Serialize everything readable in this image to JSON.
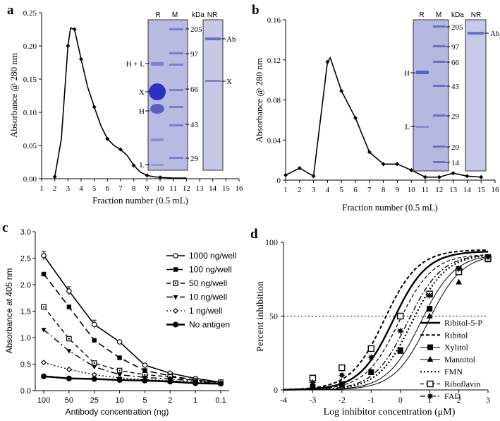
{
  "chart_data": [
    {
      "id": "a",
      "panel_label": "a",
      "type": "line",
      "ylabel": "Absorbance @ 280 nm",
      "xlabel": "Fraction number  (0.5 mL)",
      "xlim": [
        1,
        16
      ],
      "ylim": [
        0,
        0.25
      ],
      "xticks": [
        "1",
        "2",
        "3",
        "4",
        "5",
        "6",
        "7",
        "8",
        "9",
        "10",
        "11",
        "12",
        "13",
        "14",
        "15",
        "16"
      ],
      "yticks": [
        "0.00",
        "0.05",
        "0.10",
        "0.15",
        "0.20",
        "0.25"
      ],
      "series": [
        {
          "name": "A280",
          "x": [
            2,
            2.5,
            3,
            3.2,
            3.5,
            4,
            4.5,
            5,
            5.5,
            6,
            6.5,
            7,
            7.5,
            8,
            8.5,
            9,
            9.5,
            10,
            11,
            12
          ],
          "y": [
            0.003,
            0.06,
            0.2,
            0.227,
            0.225,
            0.18,
            0.138,
            0.108,
            0.08,
            0.06,
            0.05,
            0.044,
            0.035,
            0.02,
            0.01,
            0.005,
            0.003,
            0.002,
            0.001,
            0.001
          ]
        }
      ],
      "markers_x": [
        2,
        3,
        3.5,
        4,
        5,
        6,
        7,
        8,
        9,
        10
      ],
      "gels": [
        {
          "lanes": [
            "R",
            "M"
          ],
          "kda_label": "kDa",
          "marker_kda": [
            "205",
            "97",
            "66",
            "43",
            "29"
          ],
          "band_labels": [
            "H + L",
            "X",
            "H",
            "L"
          ]
        },
        {
          "lanes": [
            "NR"
          ],
          "band_labels": [
            "Ab",
            "X"
          ]
        }
      ]
    },
    {
      "id": "b",
      "panel_label": "b",
      "type": "line",
      "ylabel": "Absorbance @ 280 nm",
      "xlabel": "Fraction number  (0.5 mL)",
      "xlim": [
        1,
        16
      ],
      "ylim": [
        0,
        0.16
      ],
      "xticks": [
        "1",
        "2",
        "3",
        "4",
        "5",
        "6",
        "7",
        "8",
        "9",
        "10",
        "11",
        "12",
        "13",
        "14",
        "15",
        "16"
      ],
      "yticks": [
        "0",
        "0.04",
        "0.08",
        "0.12",
        "0.16"
      ],
      "series": [
        {
          "name": "A280",
          "x": [
            1,
            2,
            3,
            4,
            4.2,
            5,
            6,
            7,
            8,
            9,
            10,
            11,
            12,
            13,
            14,
            15
          ],
          "y": [
            0.005,
            0.012,
            0.004,
            0.118,
            0.122,
            0.089,
            0.062,
            0.028,
            0.016,
            0.016,
            0.01,
            0.003,
            0.003,
            0.007,
            0.004,
            0.003
          ]
        }
      ],
      "gels": [
        {
          "lanes": [
            "R",
            "M"
          ],
          "kda_label": "kDa",
          "marker_kda": [
            "205",
            "97",
            "66",
            "43",
            "29",
            "20",
            "14"
          ],
          "band_labels": [
            "H",
            "L"
          ]
        },
        {
          "lanes": [
            "NR"
          ],
          "band_labels": [
            "Ab"
          ]
        }
      ]
    },
    {
      "id": "c",
      "panel_label": "c",
      "type": "line",
      "ylabel": "Absorbance at 405 nm",
      "xlabel": "Antibody concentration (ng)",
      "ylim": [
        0,
        3.0
      ],
      "categories": [
        "100",
        "50",
        "25",
        "10",
        "5",
        "2",
        "1",
        "0.1"
      ],
      "yticks": [
        "0.0",
        "0.5",
        "1.0",
        "1.5",
        "2.0",
        "2.5",
        "3.0"
      ],
      "series": [
        {
          "name": "1000 ng/well",
          "values": [
            2.55,
            1.88,
            1.25,
            0.92,
            0.48,
            0.33,
            0.23,
            0.16
          ]
        },
        {
          "name": "100 ng/well",
          "values": [
            2.2,
            1.58,
            0.95,
            0.62,
            0.38,
            0.28,
            0.2,
            0.15
          ]
        },
        {
          "name": "50 ng/well",
          "values": [
            1.58,
            0.98,
            0.52,
            0.38,
            0.3,
            0.26,
            0.19,
            0.16
          ]
        },
        {
          "name": "10 ng/well",
          "values": [
            1.15,
            0.75,
            0.45,
            0.3,
            0.25,
            0.22,
            0.18,
            0.14
          ]
        },
        {
          "name": "1 ng/well",
          "values": [
            0.53,
            0.4,
            0.3,
            0.24,
            0.21,
            0.19,
            0.16,
            0.14
          ]
        },
        {
          "name": "No antigen",
          "values": [
            0.27,
            0.23,
            0.22,
            0.2,
            0.19,
            0.17,
            0.14,
            0.13
          ]
        }
      ]
    },
    {
      "id": "d",
      "panel_label": "d",
      "type": "line",
      "ylabel": "Percent inhibition",
      "xlabel": "Log inhibitor concentration (μM)",
      "xlim": [
        -4,
        3
      ],
      "ylim": [
        0,
        100
      ],
      "xticks": [
        "-4",
        "-3",
        "-2",
        "-1",
        "0",
        "1",
        "2",
        "3"
      ],
      "yticks": [
        "0",
        "50",
        "100"
      ],
      "reference_line_y": 50,
      "series": [
        {
          "name": "Ribitol-5-P",
          "ic50_log": -0.25,
          "top": 94
        },
        {
          "name": "Ribitol",
          "ic50_log": -0.55,
          "top": 95
        },
        {
          "name": "Xylitol",
          "ic50_log": 0.7,
          "top": 92,
          "points_x": [
            -3,
            -2,
            -1,
            0,
            1,
            2,
            3
          ],
          "points_y": [
            2,
            4,
            12,
            27,
            55,
            82,
            90
          ]
        },
        {
          "name": "Mannitol",
          "ic50_log": 0.95,
          "top": 92,
          "points_x": [
            -2,
            -1,
            0,
            1,
            2,
            3
          ],
          "points_y": [
            3,
            12,
            26,
            50,
            73,
            88
          ]
        },
        {
          "name": "FMN",
          "ic50_log": 0.4,
          "top": 92
        },
        {
          "name": "Riboflavin",
          "ic50_log": -0.05,
          "top": 92,
          "points_x": [
            -3,
            -2,
            -1,
            0,
            1,
            2,
            3
          ],
          "points_y": [
            8,
            15,
            28,
            50,
            65,
            80,
            89
          ]
        },
        {
          "name": "FAD",
          "ic50_log": 0.25,
          "top": 92,
          "points_x": [
            -3,
            -2,
            -1,
            0,
            1,
            2,
            3
          ],
          "points_y": [
            5,
            10,
            22,
            40,
            64,
            82,
            90
          ]
        }
      ]
    }
  ]
}
